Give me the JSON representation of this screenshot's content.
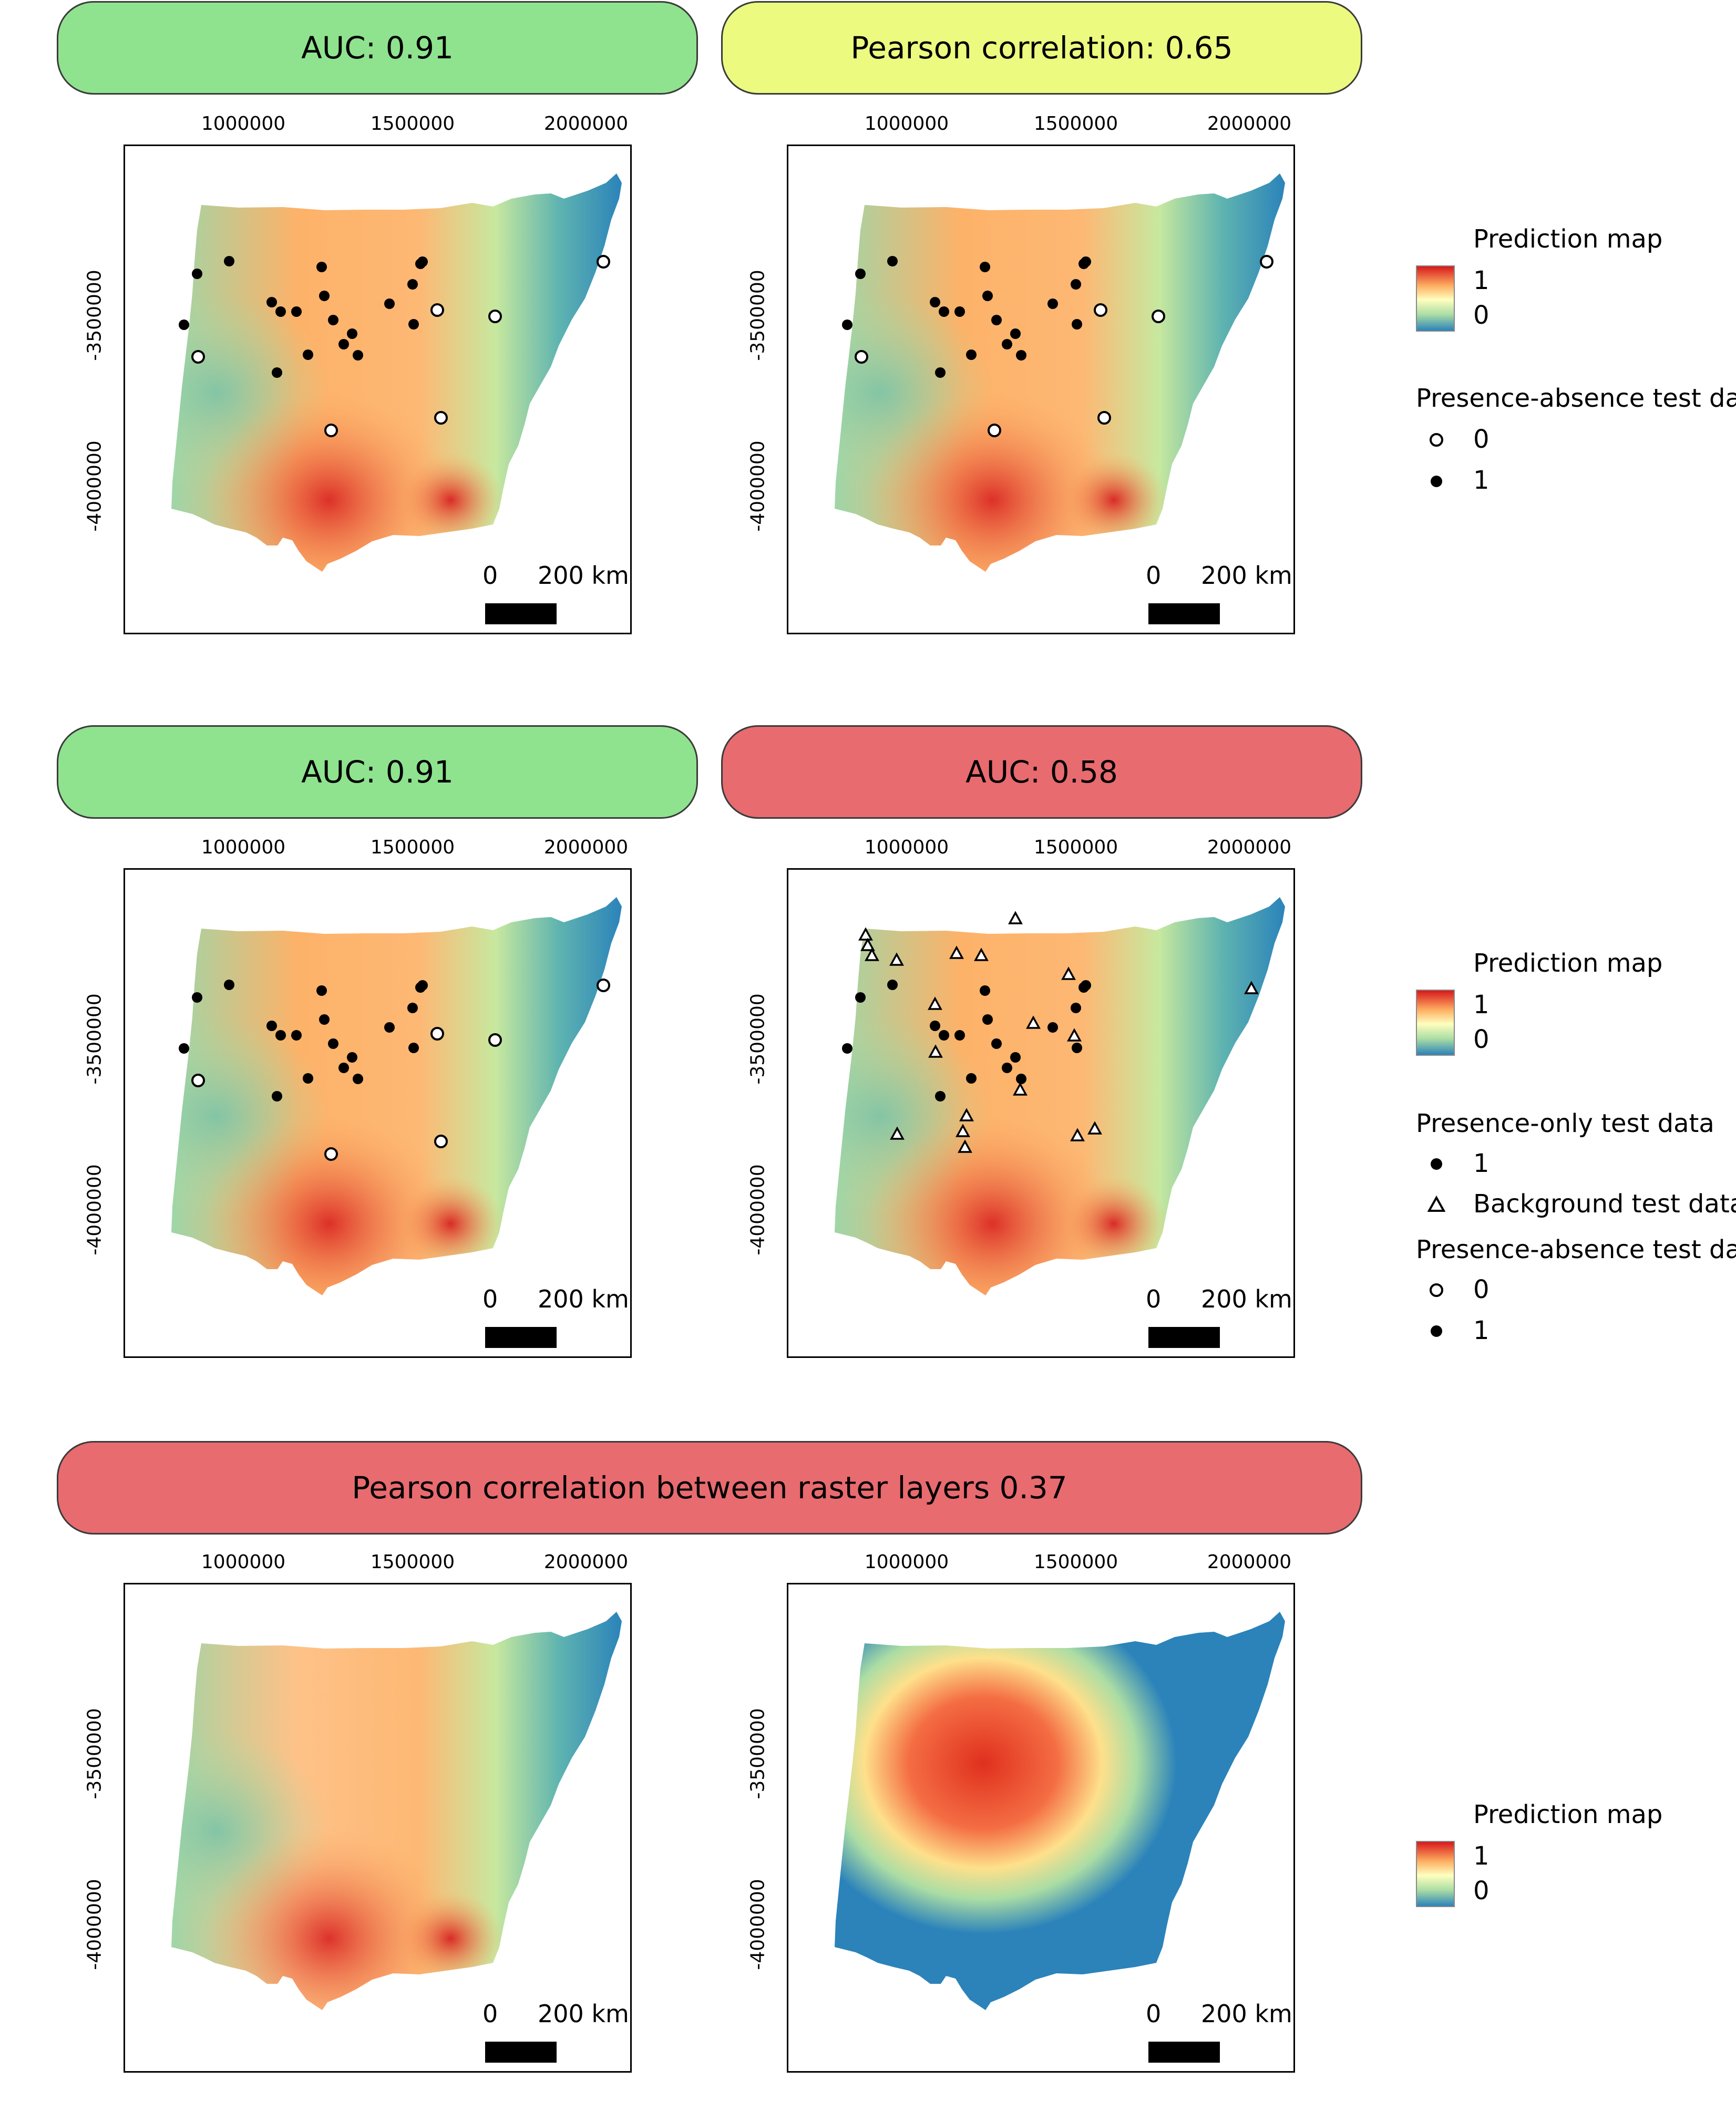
{
  "colors": {
    "pill_green": "#8fe38f",
    "pill_yellow": "#ecfa80",
    "pill_red": "#e86b6f",
    "ramp": [
      "#d7191c",
      "#fdae61",
      "#ffffbf",
      "#abdda4",
      "#2b83ba"
    ]
  },
  "row1": {
    "left_title": "AUC: 0.91",
    "right_title": "Pearson correlation: 0.65"
  },
  "row2": {
    "left_title": "AUC: 0.91",
    "right_title": "AUC: 0.58"
  },
  "row3": {
    "title": "Pearson correlation between raster layers 0.37"
  },
  "axes": {
    "x_ticks": [
      "1000000",
      "1500000",
      "2000000"
    ],
    "y_ticks": [
      "-3500000",
      "-4000000"
    ]
  },
  "scalebar": {
    "zero": "0",
    "length": "200 km"
  },
  "legend1": {
    "pred_title": "Prediction map",
    "pred_high": "1",
    "pred_low": "0",
    "pa_title": "Presence-absence test data",
    "pa_zero": "0",
    "pa_one": "1"
  },
  "legend2": {
    "pred_title": "Prediction map",
    "pred_high": "1",
    "pred_low": "0",
    "po_title": "Presence-only test data",
    "po_one": "1",
    "po_bg": "Background test data",
    "pa_title": "Presence-absence test data",
    "pa_zero": "0",
    "pa_one": "1"
  },
  "legend3": {
    "pred_title": "Prediction map",
    "pred_high": "1",
    "pred_low": "0"
  },
  "map_points": {
    "presence": [
      [
        198,
        219
      ],
      [
        137,
        243
      ],
      [
        374,
        230
      ],
      [
        566,
        220
      ],
      [
        562,
        224
      ],
      [
        547,
        263
      ],
      [
        503,
        300
      ],
      [
        379,
        285
      ],
      [
        279,
        297
      ],
      [
        296,
        315
      ],
      [
        326,
        315
      ],
      [
        396,
        331
      ],
      [
        432,
        357
      ],
      [
        549,
        339
      ],
      [
        112,
        340
      ],
      [
        416,
        377
      ],
      [
        348,
        397
      ],
      [
        289,
        431
      ],
      [
        443,
        398
      ]
    ],
    "absence": [
      [
        594,
        312
      ],
      [
        704,
        324
      ],
      [
        139,
        401
      ],
      [
        601,
        517
      ],
      [
        392,
        541
      ],
      [
        910,
        220
      ]
    ],
    "background": [
      [
        147,
        125
      ],
      [
        151,
        145
      ],
      [
        159,
        164
      ],
      [
        206,
        173
      ],
      [
        320,
        160
      ],
      [
        367,
        164
      ],
      [
        432,
        94
      ],
      [
        533,
        200
      ],
      [
        279,
        257
      ],
      [
        280,
        348
      ],
      [
        466,
        293
      ],
      [
        544,
        317
      ],
      [
        441,
        420
      ],
      [
        339,
        469
      ],
      [
        332,
        499
      ],
      [
        336,
        529
      ],
      [
        207,
        504
      ],
      [
        583,
        494
      ],
      [
        550,
        507
      ],
      [
        881,
        227
      ]
    ]
  }
}
